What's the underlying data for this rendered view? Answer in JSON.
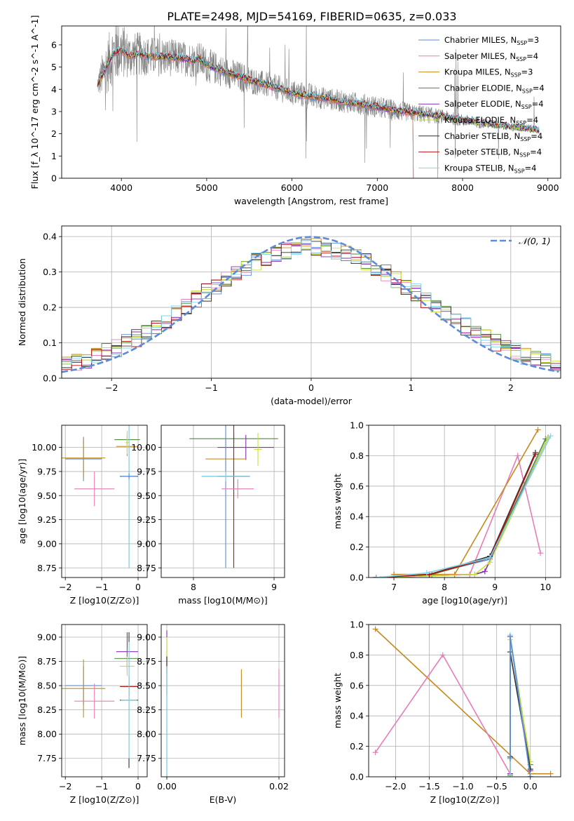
{
  "figure_title": "PLATE=2498, MJD=54169, FIBERID=0635, z=0.033",
  "colors": {
    "Chabrier MILES": "#5B8BD9",
    "Salpeter MILES": "#E87CB8",
    "Kroupa MILES": "#C68A1E",
    "Chabrier ELODIE": "#4E8A3A",
    "Salpeter ELODIE": "#8A2BB5",
    "Kroupa ELODIE": "#C8E033",
    "Chabrier STELIB": "#2F2F2F",
    "Salpeter STELIB": "#B01515",
    "Kroupa STELIB": "#7FD6EA",
    "data": "#808080",
    "model_orange": "#E87A3A",
    "gaussian": "#5B8BD9"
  },
  "chart_data": [
    {
      "id": "spectrum",
      "type": "line",
      "xlabel": "wavelength [Angstrom, rest frame]",
      "ylabel": "Flux [f_λ 10^-17 erg cm^-2 s^-1 A^-1]",
      "xlim": [
        3300,
        9150
      ],
      "ylim": [
        0,
        6.85
      ],
      "xticks": [
        4000,
        5000,
        6000,
        7000,
        8000,
        9000
      ],
      "yticks": [
        0,
        1,
        2,
        3,
        4,
        5,
        6
      ],
      "grid": false,
      "legend_position": "top-right",
      "legend": [
        "Chabrier MILES, N_SSP=3",
        "Salpeter MILES, N_SSP=4",
        "Kroupa MILES, N_SSP=3",
        "Chabrier ELODIE, N_SSP=4",
        "Salpeter ELODIE, N_SSP=4",
        "Kroupa ELODIE, N_SSP=4",
        "Chabrier STELIB, N_SSP=4",
        "Salpeter STELIB, N_SSP=4",
        "Kroupa STELIB, N_SSP=4"
      ],
      "model_continuum": {
        "x": [
          3720,
          3800,
          3900,
          4000,
          4100,
          4200,
          4300,
          4500,
          4700,
          4850,
          4900,
          5000,
          5200,
          5400,
          5600,
          5800,
          6000,
          6200,
          6400,
          6600,
          6800,
          7000,
          7200,
          7400,
          7600,
          7800,
          8000,
          8200,
          8400,
          8600,
          8800,
          8900
        ],
        "y": [
          4.2,
          4.8,
          5.6,
          5.75,
          5.5,
          5.6,
          5.5,
          5.45,
          5.4,
          5.3,
          5.4,
          5.1,
          4.8,
          4.55,
          4.3,
          4.1,
          3.85,
          3.7,
          3.6,
          3.45,
          3.35,
          3.2,
          3.05,
          2.95,
          2.85,
          2.75,
          2.6,
          2.5,
          2.4,
          2.3,
          2.2,
          2.15
        ]
      },
      "data_envelope": {
        "x": [
          3720,
          3800,
          3900,
          4000,
          4100,
          4200,
          4300,
          4500,
          4700,
          4900,
          5000,
          5200,
          5400,
          5600,
          5800,
          6000,
          6200,
          6400,
          6600,
          6800,
          7000,
          7200,
          7400,
          7600,
          7800,
          8000,
          8200,
          8400,
          8600,
          8800,
          8900
        ],
        "spread": [
          0.5,
          1.2,
          1.4,
          1.3,
          1.0,
          1.0,
          0.9,
          0.9,
          0.8,
          0.8,
          0.8,
          0.7,
          0.7,
          0.6,
          0.6,
          0.6,
          0.6,
          0.5,
          0.5,
          0.5,
          0.5,
          0.5,
          0.4,
          0.4,
          0.3,
          0.3,
          0.25,
          0.2,
          0.2,
          0.15,
          0.1
        ]
      }
    },
    {
      "id": "residuals",
      "type": "line",
      "xlabel": "(data-model)/error",
      "ylabel": "Normed distribution",
      "xlim": [
        -2.5,
        2.5
      ],
      "ylim": [
        0,
        0.43
      ],
      "xticks": [
        -2,
        -1,
        0,
        1,
        2
      ],
      "yticks": [
        0.0,
        0.1,
        0.2,
        0.3,
        0.4
      ],
      "grid": true,
      "legend_position": "top-right",
      "legend": [
        "N(0,1)"
      ],
      "bin_width": 0.1
    },
    {
      "id": "age_vs_Z",
      "type": "scatter",
      "xlabel": "Z [log10(Z/Z⊙)]",
      "ylabel": "age [log10(age/yr)]",
      "xlim": [
        -2.1,
        0.25
      ],
      "ylim": [
        8.65,
        10.23
      ],
      "xticks": [
        -2,
        -1,
        0
      ],
      "yticks": [
        8.75,
        9.0,
        9.25,
        9.5,
        9.75,
        10.0
      ],
      "grid": true,
      "points": [
        {
          "model": "Chabrier MILES",
          "x": -1.5,
          "y": 9.88,
          "xerr": 0.5,
          "yerr": 0.23
        },
        {
          "model": "Kroupa MILES",
          "x": -1.5,
          "y": 9.89,
          "xerr": 0.6,
          "yerr": 0.2
        },
        {
          "model": "Salpeter MILES",
          "x": -1.2,
          "y": 9.57,
          "xerr": 0.55,
          "yerr": 0.18
        },
        {
          "model": "Chabrier ELODIE",
          "x": -0.3,
          "y": 10.08,
          "xerr": 0.35,
          "yerr": 0.05
        },
        {
          "model": "Kroupa MILES",
          "x": -0.3,
          "y": 10.01,
          "xerr": 0.3,
          "yerr": 0.1
        },
        {
          "model": "Kroupa ELODIE",
          "x": -0.3,
          "y": 10.05,
          "xerr": 0.05,
          "yerr": 0.12
        },
        {
          "model": "Chabrier STELIB",
          "x": -0.25,
          "y": 9.7,
          "xerr": 0.25,
          "yerr": 0.95
        },
        {
          "model": "Kroupa STELIB",
          "x": -0.25,
          "y": 9.7,
          "xerr": 0.2,
          "yerr": 0.95
        },
        {
          "model": "Chabrier MILES",
          "x": -0.25,
          "y": 9.7,
          "xerr": 0.25,
          "yerr": 0.03
        }
      ]
    },
    {
      "id": "age_vs_mass",
      "type": "scatter",
      "xlabel": "mass [log10(M/M⊙)]",
      "ylabel": "",
      "xlim": [
        7.6,
        9.13
      ],
      "ylim": [
        8.65,
        10.23
      ],
      "xticks": [
        8,
        9
      ],
      "yticks": [
        8.75,
        9.0,
        9.25,
        9.5,
        9.75,
        10.0
      ],
      "grid": true,
      "points": [
        {
          "model": "Chabrier ELODIE",
          "x": 8.5,
          "y": 10.09,
          "xerr": 0.55,
          "yerr": 0.05
        },
        {
          "model": "Salpeter ELODIE",
          "x": 8.65,
          "y": 10.0,
          "xerr": 0.35,
          "yerr": 0.13
        },
        {
          "model": "Kroupa ELODIE",
          "x": 8.8,
          "y": 9.98,
          "xerr": 0.05,
          "yerr": 0.17
        },
        {
          "model": "Kroupa MILES",
          "x": 8.4,
          "y": 9.88,
          "xerr": 0.25,
          "yerr": 0.22
        },
        {
          "model": "Chabrier MILES",
          "x": 8.4,
          "y": 9.7,
          "xerr": 0.3,
          "yerr": 0.95
        },
        {
          "model": "Salpeter STELIB",
          "x": 8.5,
          "y": 9.7,
          "xerr": 0.2,
          "yerr": 0.95
        },
        {
          "model": "Salpeter MILES",
          "x": 8.55,
          "y": 9.57,
          "xerr": 0.2,
          "yerr": 0.1
        },
        {
          "model": "Kroupa STELIB",
          "x": 8.4,
          "y": 9.7,
          "xerr": 0.3,
          "yerr": 0.05
        }
      ]
    },
    {
      "id": "massweight_vs_age",
      "type": "line",
      "xlabel": "age [log10(age/yr)]",
      "ylabel": "mass weight",
      "xlim": [
        6.5,
        10.3
      ],
      "ylim": [
        0,
        1.0
      ],
      "xticks": [
        7,
        8,
        9,
        10
      ],
      "yticks": [
        0.0,
        0.2,
        0.4,
        0.6,
        0.8,
        1.0
      ],
      "grid": true,
      "series": [
        {
          "model": "Chabrier MILES",
          "x": [
            6.65,
            7.7,
            8.9,
            10.05
          ],
          "y": [
            0.0,
            0.02,
            0.12,
            0.92
          ]
        },
        {
          "model": "Salpeter MILES",
          "x": [
            7.0,
            8.5,
            9.45,
            9.9
          ],
          "y": [
            0.02,
            0.02,
            0.8,
            0.16
          ]
        },
        {
          "model": "Kroupa MILES",
          "x": [
            7.0,
            8.2,
            9.85
          ],
          "y": [
            0.02,
            0.02,
            0.97
          ]
        },
        {
          "model": "Chabrier ELODIE",
          "x": [
            6.65,
            7.75,
            8.9,
            10.0
          ],
          "y": [
            0.0,
            0.02,
            0.13,
            0.91
          ]
        },
        {
          "model": "Salpeter ELODIE",
          "x": [
            6.65,
            8.6,
            8.8,
            10.05
          ],
          "y": [
            0.0,
            0.02,
            0.04,
            0.92
          ]
        },
        {
          "model": "Kroupa ELODIE",
          "x": [
            6.65,
            8.6,
            8.9,
            10.05
          ],
          "y": [
            0.0,
            0.02,
            0.1,
            0.92
          ]
        },
        {
          "model": "Chabrier STELIB",
          "x": [
            6.65,
            7.7,
            8.9,
            9.8
          ],
          "y": [
            0.0,
            0.02,
            0.14,
            0.82
          ]
        },
        {
          "model": "Salpeter STELIB",
          "x": [
            6.65,
            7.7,
            8.9,
            9.8
          ],
          "y": [
            0.0,
            0.02,
            0.13,
            0.81
          ]
        },
        {
          "model": "Kroupa STELIB",
          "x": [
            6.65,
            7.65,
            8.9,
            10.1
          ],
          "y": [
            0.0,
            0.03,
            0.13,
            0.93
          ]
        }
      ]
    },
    {
      "id": "mass_vs_Z",
      "type": "scatter",
      "xlabel": "Z [log10(Z/Z⊙)]",
      "ylabel": "mass [log10(M/M⊙)]",
      "xlim": [
        -2.1,
        0.25
      ],
      "ylim": [
        7.56,
        9.13
      ],
      "xticks": [
        -2,
        -1,
        0
      ],
      "yticks": [
        7.75,
        8.0,
        8.25,
        8.5,
        8.75,
        9.0
      ],
      "grid": true,
      "points": [
        {
          "model": "Chabrier MILES",
          "x": -1.5,
          "y": 8.5,
          "xerr": 0.5,
          "yerr": 0.2
        },
        {
          "model": "Kroupa MILES",
          "x": -1.5,
          "y": 8.47,
          "xerr": 0.6,
          "yerr": 0.3
        },
        {
          "model": "Salpeter MILES",
          "x": -1.2,
          "y": 8.34,
          "xerr": 0.55,
          "yerr": 0.18
        },
        {
          "model": "Salpeter ELODIE",
          "x": -0.3,
          "y": 8.85,
          "xerr": 0.3,
          "yerr": 0.2
        },
        {
          "model": "Chabrier ELODIE",
          "x": -0.3,
          "y": 8.78,
          "xerr": 0.35,
          "yerr": 0.1
        },
        {
          "model": "Kroupa ELODIE",
          "x": -0.3,
          "y": 8.7,
          "xerr": 0.2,
          "yerr": 0.1
        },
        {
          "model": "Salpeter STELIB",
          "x": -0.25,
          "y": 8.49,
          "xerr": 0.25,
          "yerr": 0.1
        },
        {
          "model": "Chabrier STELIB",
          "x": -0.25,
          "y": 8.35,
          "xerr": 0.25,
          "yerr": 0.7
        },
        {
          "model": "Kroupa STELIB",
          "x": -0.25,
          "y": 8.35,
          "xerr": 0.22,
          "yerr": 0.6
        }
      ]
    },
    {
      "id": "mass_vs_ebv",
      "type": "scatter",
      "xlabel": "E(B-V)",
      "ylabel": "",
      "xlim": [
        -0.001,
        0.021
      ],
      "ylim": [
        7.56,
        9.13
      ],
      "xticks": [
        0.0,
        0.02
      ],
      "yticks": [
        7.75,
        8.0,
        8.25,
        8.5,
        8.75,
        9.0
      ],
      "xtick_labels": [
        "0.00",
        "0.02"
      ],
      "grid": true,
      "points": [
        {
          "model": "Salpeter ELODIE",
          "x": 0.0,
          "y": 8.85,
          "yerr": 0.22
        },
        {
          "model": "Kroupa ELODIE",
          "x": 0.0,
          "y": 8.7,
          "yerr": 0.3
        },
        {
          "model": "Salpeter STELIB",
          "x": 0.0,
          "y": 8.6,
          "yerr": 0.2
        },
        {
          "model": "Chabrier STELIB",
          "x": 0.0,
          "y": 8.1,
          "yerr": 0.7
        },
        {
          "model": "Kroupa STELIB",
          "x": 0.0,
          "y": 8.1,
          "yerr": 0.6
        },
        {
          "model": "Kroupa MILES",
          "x": 0.0133,
          "y": 8.42,
          "yerr": 0.25
        },
        {
          "model": "Salpeter MILES",
          "x": 0.02,
          "y": 8.42,
          "yerr": 0.25
        }
      ]
    },
    {
      "id": "massweight_vs_Z",
      "type": "line",
      "xlabel": "Z [log10(Z/Z⊙)]",
      "ylabel": "mass weight",
      "xlim": [
        -2.4,
        0.45
      ],
      "ylim": [
        0,
        1.0
      ],
      "xticks": [
        -2.0,
        -1.5,
        -1.0,
        -0.5,
        0.0
      ],
      "xtick_labels": [
        "−2.0",
        "−1.5",
        "−1.0",
        "−0.5",
        "0.0"
      ],
      "yticks": [
        0.0,
        0.2,
        0.4,
        0.6,
        0.8,
        1.0
      ],
      "grid": true,
      "series": [
        {
          "model": "Kroupa MILES",
          "x": [
            -2.3,
            0.0,
            0.3
          ],
          "y": [
            0.97,
            0.02,
            0.02
          ]
        },
        {
          "model": "Salpeter MILES",
          "x": [
            -2.3,
            -1.3,
            -0.3
          ],
          "y": [
            0.16,
            0.8,
            0.02
          ]
        },
        {
          "model": "Chabrier ELODIE",
          "x": [
            -0.3,
            -0.3,
            0.0,
            0.0
          ],
          "y": [
            0.01,
            0.92,
            0.08,
            0.0
          ]
        },
        {
          "model": "Salpeter ELODIE",
          "x": [
            -0.3,
            -0.3,
            0.0,
            0.0
          ],
          "y": [
            0.02,
            0.92,
            0.04,
            0.0
          ]
        },
        {
          "model": "Kroupa ELODIE",
          "x": [
            -0.3,
            -0.3,
            0.0,
            0.0
          ],
          "y": [
            0.0,
            0.9,
            0.1,
            0.0
          ]
        },
        {
          "model": "Chabrier STELIB",
          "x": [
            -0.3,
            -0.3,
            0.0
          ],
          "y": [
            0.13,
            0.82,
            0.05
          ]
        },
        {
          "model": "Kroupa STELIB",
          "x": [
            -0.3,
            -0.3,
            0.0
          ],
          "y": [
            0.0,
            0.93,
            0.0
          ]
        },
        {
          "model": "Chabrier MILES",
          "x": [
            -0.3,
            -0.3,
            0.0
          ],
          "y": [
            0.12,
            0.92,
            0.0
          ]
        }
      ]
    }
  ]
}
